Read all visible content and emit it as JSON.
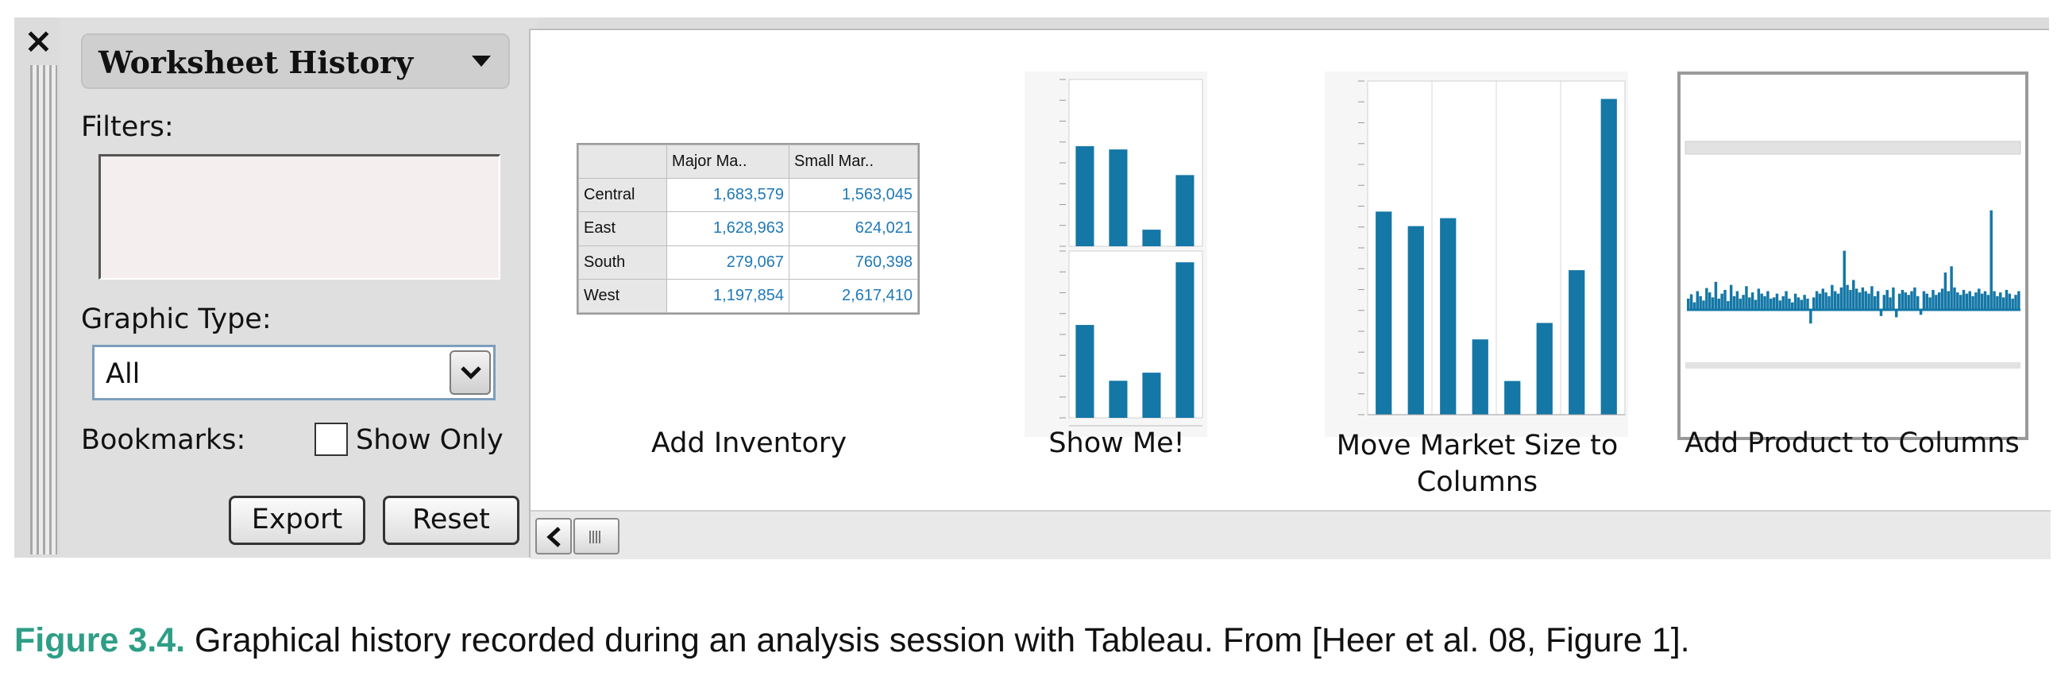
{
  "left_panel": {
    "close_glyph": "×",
    "title": "Worksheet History",
    "filters_label": "Filters:",
    "graphic_type_label": "Graphic Type:",
    "graphic_type_value": "All",
    "bookmarks_label": "Bookmarks:",
    "show_only_label": "Show Only",
    "show_only_checked": false,
    "export_label": "Export",
    "reset_label": "Reset"
  },
  "history": {
    "items": [
      {
        "caption": "Add Inventory",
        "table": {
          "headers": [
            "",
            "Major Ma..",
            "Small Mar.."
          ],
          "rows": [
            [
              "Central",
              "1,683,579",
              "1,563,045"
            ],
            [
              "East",
              "1,628,963",
              "624,021"
            ],
            [
              "South",
              "279,067",
              "760,398"
            ],
            [
              "West",
              "1,197,854",
              "2,617,410"
            ]
          ]
        }
      },
      {
        "caption": "Show Me!"
      },
      {
        "caption": "Move Market Size to Columns"
      },
      {
        "caption": "Add Product to Columns"
      }
    ]
  },
  "colors": {
    "bar": "#1477a6",
    "accent_caption": "#2e9e86"
  },
  "chart_data": [
    {
      "type": "bar",
      "name_ref": "Show Me!",
      "panels": [
        {
          "values": [
            1683579,
            1628963,
            279067,
            1197854
          ]
        },
        {
          "values": [
            1563045,
            624021,
            760398,
            2617410
          ]
        }
      ],
      "ylim": [
        0,
        2700000
      ]
    },
    {
      "type": "bar",
      "name_ref": "Move Market Size to Columns",
      "values": [
        1683579,
        1563045,
        1628963,
        624021,
        279067,
        760398,
        1197854,
        2617410
      ],
      "ylim": [
        0,
        2700000
      ]
    },
    {
      "type": "bar",
      "name_ref": "Add Product to Columns",
      "values_description_only": false,
      "values": [
        0.18,
        0.25,
        0.12,
        0.3,
        0.22,
        0.15,
        0.35,
        0.28,
        0.2,
        0.45,
        0.18,
        0.26,
        0.32,
        0.14,
        0.4,
        0.22,
        0.3,
        0.18,
        0.24,
        0.38,
        0.2,
        0.28,
        0.16,
        0.34,
        0.26,
        0.22,
        0.3,
        0.18,
        0.2,
        0.26,
        0.15,
        0.22,
        0.3,
        0.18,
        0.12,
        0.26,
        0.2,
        0.16,
        0.24,
        0.18,
        -0.22,
        0.2,
        0.3,
        0.26,
        0.34,
        0.28,
        0.22,
        0.4,
        0.3,
        0.26,
        0.36,
        0.95,
        0.4,
        0.32,
        0.48,
        0.34,
        0.28,
        0.36,
        0.3,
        0.26,
        0.38,
        0.22,
        0.3,
        -0.1,
        0.24,
        0.32,
        0.2,
        0.36,
        -0.12,
        0.26,
        0.32,
        0.28,
        0.24,
        0.3,
        0.36,
        0.22,
        -0.08,
        0.3,
        0.26,
        0.2,
        0.32,
        0.24,
        0.28,
        0.34,
        0.6,
        0.3,
        0.7,
        0.36,
        0.28,
        0.24,
        0.32,
        0.26,
        0.3,
        0.22,
        0.28,
        0.34,
        0.26,
        0.3,
        0.24,
        1.6,
        0.3,
        0.22,
        0.28,
        0.2,
        0.32,
        0.26,
        0.18,
        0.24,
        0.3
      ],
      "ylim": [
        -0.6,
        1.7
      ]
    }
  ],
  "figure_caption": {
    "label": "Figure 3.4.",
    "text": " Graphical history recorded during an analysis session with Tableau. From [Heer et al. 08, Figure 1]."
  }
}
